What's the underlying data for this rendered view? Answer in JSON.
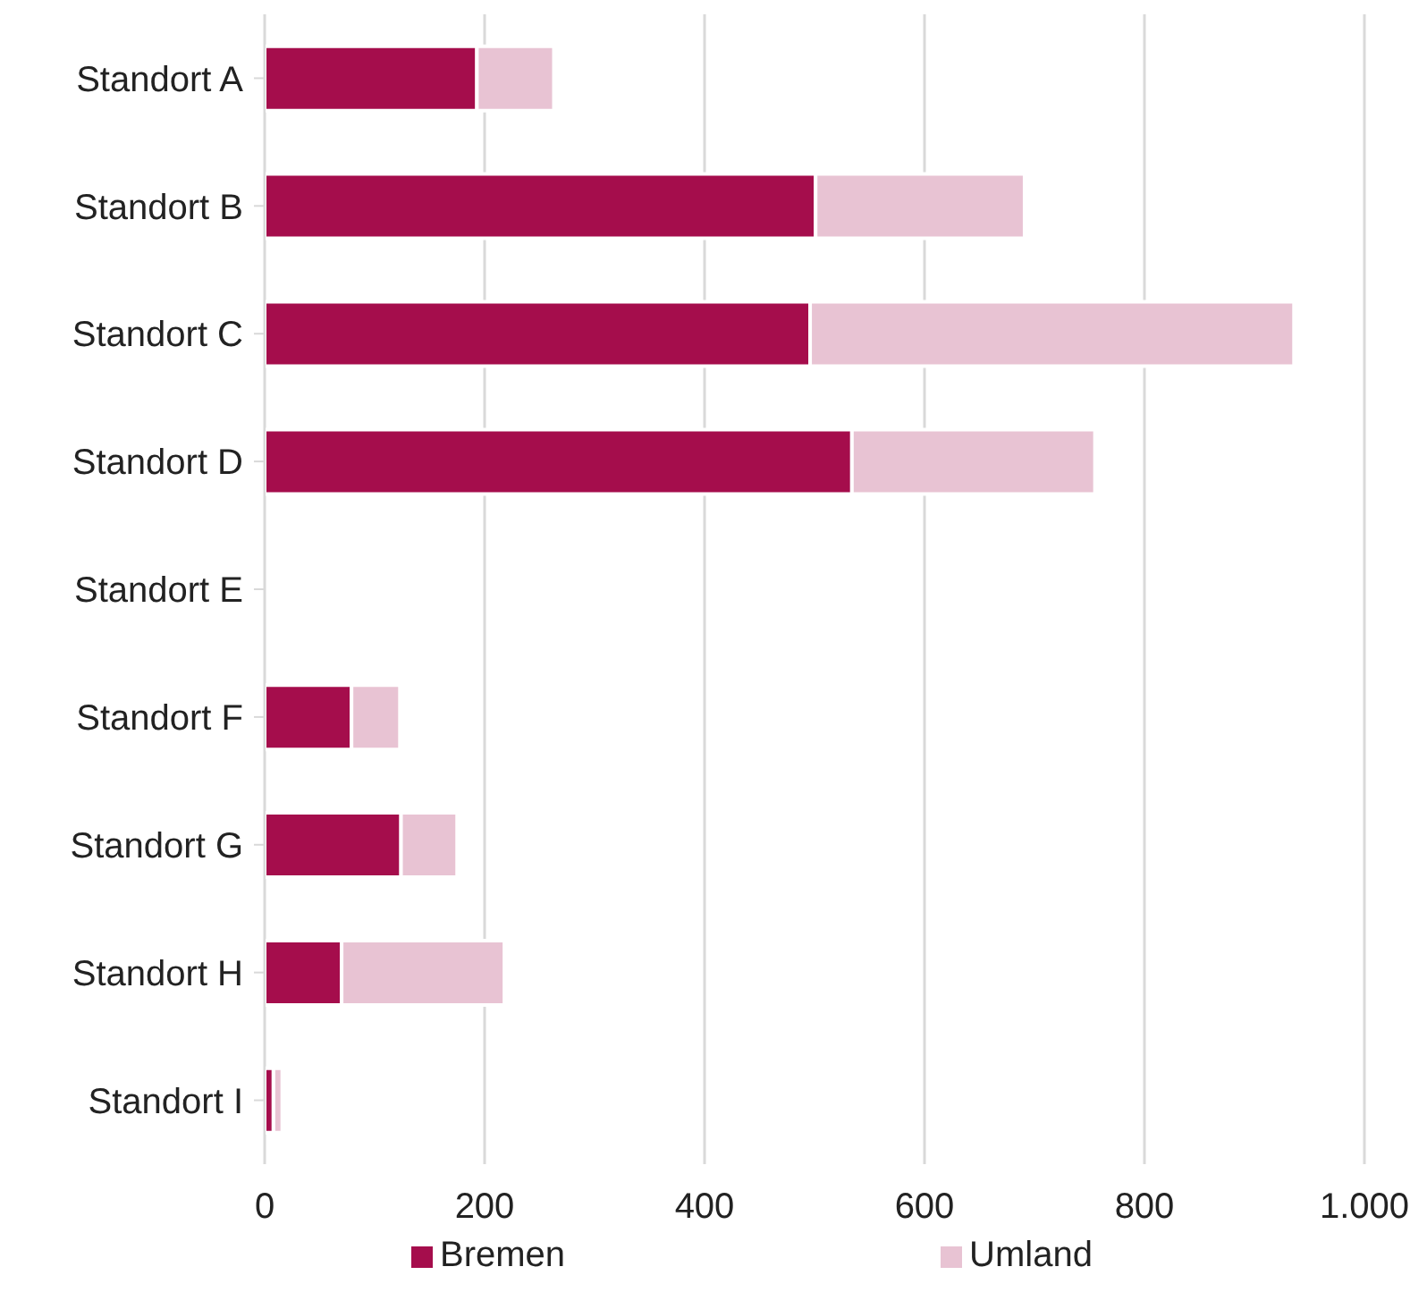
{
  "chart_data": {
    "type": "bar",
    "orientation": "horizontal",
    "stacked": true,
    "categories": [
      "Standort A",
      "Standort B",
      "Standort C",
      "Standort D",
      "Standort E",
      "Standort F",
      "Standort G",
      "Standort H",
      "Standort I"
    ],
    "series": [
      {
        "name": "Bremen",
        "color": "#a50d4c",
        "values": [
          193,
          501,
          496,
          534,
          0,
          79,
          124,
          70,
          8
        ]
      },
      {
        "name": "Umland",
        "color": "#e8c3d3",
        "values": [
          70,
          190,
          440,
          221,
          0,
          44,
          51,
          148,
          8
        ]
      }
    ],
    "xlim": [
      0,
      1000
    ],
    "xticks": [
      0,
      200,
      400,
      600,
      800,
      {
        "value": 1000,
        "label": "1.000"
      }
    ],
    "grid": "x",
    "legend": "bottom"
  }
}
